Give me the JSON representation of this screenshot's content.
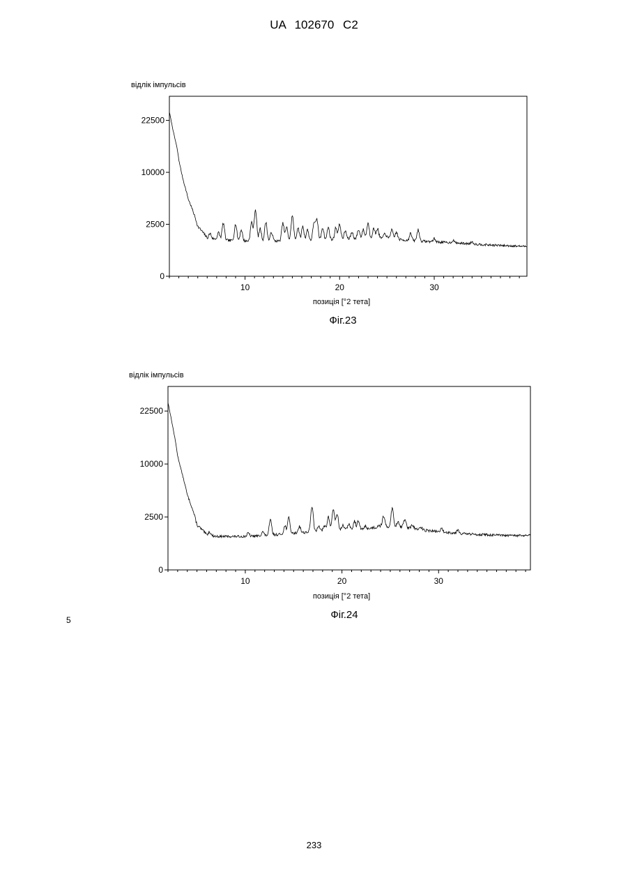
{
  "header": {
    "text": "UA   102670   C2"
  },
  "line_number": "5",
  "page_number": "233",
  "chart_data": [
    {
      "type": "line",
      "title": "",
      "caption": "Фіг.23",
      "ylabel": "відлік імпульсів",
      "xlabel": "позиція [°2 тета]",
      "x_ticks": [
        "10",
        "20",
        "30"
      ],
      "x_tick_values": [
        10,
        20,
        30
      ],
      "y_ticks": [
        "0",
        "2500",
        "10000",
        "22500"
      ],
      "y_scale": "sqrt",
      "xlim": [
        2,
        39.8
      ],
      "ylim": [
        0,
        30000
      ],
      "grid": false,
      "series": [
        {
          "baseline": [
            [
              2,
              25000
            ],
            [
              2.5,
              18000
            ],
            [
              3,
              11000
            ],
            [
              4,
              5500
            ],
            [
              5,
              2300
            ],
            [
              6,
              1350
            ],
            [
              8,
              1200
            ],
            [
              10,
              1150
            ],
            [
              12,
              1150
            ],
            [
              14,
              1150
            ],
            [
              17,
              1200
            ],
            [
              20,
              1250
            ],
            [
              23,
              1350
            ],
            [
              25,
              1350
            ],
            [
              27,
              1200
            ],
            [
              30,
              1100
            ],
            [
              33,
              1000
            ],
            [
              36,
              900
            ],
            [
              39.8,
              820
            ]
          ],
          "peaks": [
            [
              2.9,
              14000
            ],
            [
              6.3,
              1700
            ],
            [
              7.2,
              1750
            ],
            [
              7.7,
              2600
            ],
            [
              9,
              2500
            ],
            [
              9.6,
              2000
            ],
            [
              10.7,
              2700
            ],
            [
              11.1,
              4100
            ],
            [
              11.6,
              2100
            ],
            [
              12.2,
              2700
            ],
            [
              12.8,
              1800
            ],
            [
              14,
              2600
            ],
            [
              14.4,
              2200
            ],
            [
              15,
              3400
            ],
            [
              15.6,
              2200
            ],
            [
              16.1,
              2300
            ],
            [
              16.6,
              2000
            ],
            [
              17.3,
              2700
            ],
            [
              17.6,
              2900
            ],
            [
              18.2,
              2200
            ],
            [
              18.8,
              2200
            ],
            [
              19.6,
              2200
            ],
            [
              20,
              2500
            ],
            [
              20.6,
              1900
            ],
            [
              21.3,
              1800
            ],
            [
              22,
              2000
            ],
            [
              22.5,
              2000
            ],
            [
              23,
              2600
            ],
            [
              23.6,
              2100
            ],
            [
              24,
              2100
            ],
            [
              24.8,
              1700
            ],
            [
              25.5,
              2000
            ],
            [
              26,
              1800
            ],
            [
              27.5,
              1700
            ],
            [
              28.3,
              2000
            ],
            [
              30,
              1300
            ],
            [
              32,
              1200
            ],
            [
              34,
              1100
            ]
          ]
        }
      ]
    },
    {
      "type": "line",
      "title": "",
      "caption": "Фіг.24",
      "ylabel": "відлік імпульсів",
      "xlabel": "позиція [°2 тета]",
      "x_ticks": [
        "10",
        "20",
        "30"
      ],
      "x_tick_values": [
        10,
        20,
        30
      ],
      "y_ticks": [
        "0",
        "2500",
        "10000",
        "22500"
      ],
      "y_scale": "sqrt",
      "xlim": [
        2,
        39.5
      ],
      "ylim": [
        0,
        30000
      ],
      "grid": false,
      "series": [
        {
          "baseline": [
            [
              2,
              25000
            ],
            [
              2.5,
              18000
            ],
            [
              3,
              11000
            ],
            [
              4,
              5000
            ],
            [
              5,
              1800
            ],
            [
              6,
              1100
            ],
            [
              7,
              1000
            ],
            [
              10,
              1000
            ],
            [
              12,
              1050
            ],
            [
              14,
              1150
            ],
            [
              16,
              1250
            ],
            [
              18,
              1350
            ],
            [
              20,
              1400
            ],
            [
              22,
              1450
            ],
            [
              24,
              1650
            ],
            [
              26,
              1650
            ],
            [
              28,
              1450
            ],
            [
              30,
              1300
            ],
            [
              33,
              1150
            ],
            [
              35,
              1100
            ],
            [
              37,
              1050
            ],
            [
              39.5,
              1050
            ]
          ],
          "peaks": [
            [
              2.9,
              13000
            ],
            [
              6.3,
              1300
            ],
            [
              10.3,
              1200
            ],
            [
              11.8,
              1300
            ],
            [
              12.6,
              2200
            ],
            [
              14.1,
              1700
            ],
            [
              14.5,
              2400
            ],
            [
              15.6,
              1700
            ],
            [
              16.9,
              3600
            ],
            [
              17.6,
              1800
            ],
            [
              18.2,
              1700
            ],
            [
              18.6,
              2500
            ],
            [
              19.1,
              3300
            ],
            [
              19.5,
              2800
            ],
            [
              20.1,
              1800
            ],
            [
              20.7,
              1900
            ],
            [
              21.3,
              2100
            ],
            [
              21.7,
              2100
            ],
            [
              22.4,
              1700
            ],
            [
              23.2,
              1600
            ],
            [
              23.8,
              1800
            ],
            [
              24.3,
              2600
            ],
            [
              25.2,
              3400
            ],
            [
              25.8,
              2100
            ],
            [
              26.5,
              2300
            ],
            [
              27.3,
              1800
            ],
            [
              28.2,
              1600
            ],
            [
              30.3,
              1500
            ],
            [
              32,
              1450
            ]
          ]
        }
      ]
    }
  ]
}
